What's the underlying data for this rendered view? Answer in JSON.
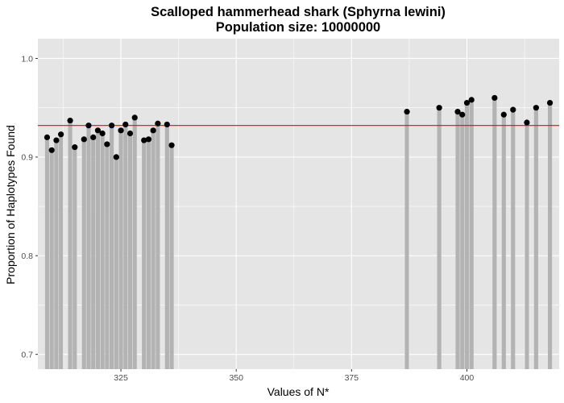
{
  "chart_data": {
    "type": "bar",
    "title": "Scalloped hammerhead shark (Sphyrna lewini)",
    "subtitle": "Population size: 10000000",
    "xlabel": "Values of N*",
    "ylabel": "Proportion of Haplotypes Found",
    "xlim": [
      307,
      420
    ],
    "ylim": [
      0.685,
      1.02
    ],
    "x_ticks": [
      325,
      350,
      375,
      400
    ],
    "x_tick_labels": [
      "325",
      "350",
      "375",
      "400"
    ],
    "y_ticks": [
      0.7,
      0.8,
      0.9,
      1.0
    ],
    "y_tick_labels": [
      "0.7",
      "0.8",
      "0.9",
      "1.0"
    ],
    "grid": true,
    "reference_line": {
      "y": 0.932,
      "color": "#ff0000"
    },
    "points": [
      {
        "x": 309,
        "y": 0.92
      },
      {
        "x": 310,
        "y": 0.907
      },
      {
        "x": 311,
        "y": 0.917
      },
      {
        "x": 312,
        "y": 0.923
      },
      {
        "x": 314,
        "y": 0.937
      },
      {
        "x": 315,
        "y": 0.91
      },
      {
        "x": 317,
        "y": 0.918
      },
      {
        "x": 318,
        "y": 0.932
      },
      {
        "x": 319,
        "y": 0.92
      },
      {
        "x": 320,
        "y": 0.927
      },
      {
        "x": 321,
        "y": 0.924
      },
      {
        "x": 322,
        "y": 0.913
      },
      {
        "x": 323,
        "y": 0.932
      },
      {
        "x": 324,
        "y": 0.9
      },
      {
        "x": 325,
        "y": 0.927
      },
      {
        "x": 326,
        "y": 0.933
      },
      {
        "x": 327,
        "y": 0.924
      },
      {
        "x": 328,
        "y": 0.94
      },
      {
        "x": 330,
        "y": 0.917
      },
      {
        "x": 331,
        "y": 0.918
      },
      {
        "x": 332,
        "y": 0.927
      },
      {
        "x": 333,
        "y": 0.934
      },
      {
        "x": 335,
        "y": 0.933
      },
      {
        "x": 336,
        "y": 0.912
      },
      {
        "x": 387,
        "y": 0.946
      },
      {
        "x": 394,
        "y": 0.95
      },
      {
        "x": 398,
        "y": 0.946
      },
      {
        "x": 399,
        "y": 0.943
      },
      {
        "x": 400,
        "y": 0.955
      },
      {
        "x": 401,
        "y": 0.958
      },
      {
        "x": 406,
        "y": 0.96
      },
      {
        "x": 408,
        "y": 0.943
      },
      {
        "x": 410,
        "y": 0.948
      },
      {
        "x": 413,
        "y": 0.935
      },
      {
        "x": 415,
        "y": 0.95
      },
      {
        "x": 418,
        "y": 0.955
      }
    ],
    "colors": {
      "panel_background": "#e5e5e5",
      "grid": "#ffffff",
      "bar": "#b3b3b3",
      "point": "#000000",
      "reference_line": "#ff0000"
    }
  }
}
